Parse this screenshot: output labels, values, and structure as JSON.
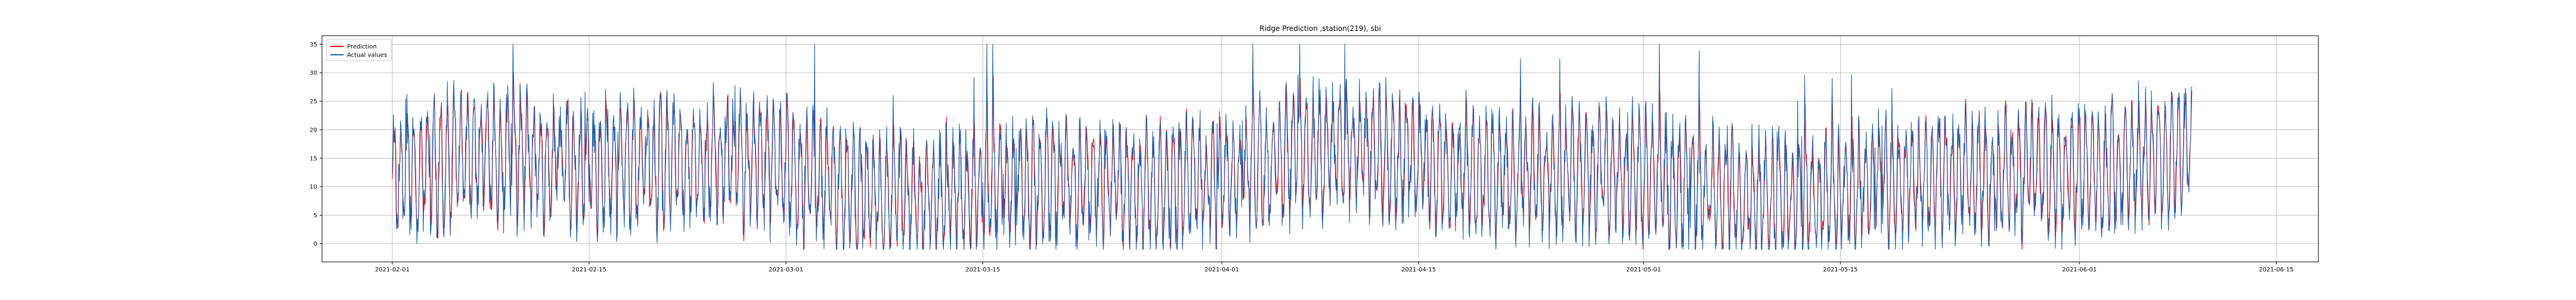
{
  "chart_data": {
    "type": "line",
    "title": "Ridge Prediction ,station(219), sbi",
    "xlabel": "",
    "ylabel": "",
    "x_range": [
      "2021-01-27",
      "2021-06-18"
    ],
    "x_ticks": [
      "2021-02-01",
      "2021-02-15",
      "2021-03-01",
      "2021-03-15",
      "2021-04-01",
      "2021-04-15",
      "2021-05-01",
      "2021-05-15",
      "2021-06-01",
      "2021-06-15"
    ],
    "ylim": [
      -3.2,
      36.5
    ],
    "y_ticks": [
      0,
      5,
      10,
      15,
      20,
      25,
      30,
      35
    ],
    "grid": true,
    "legend_position": "upper-left",
    "data_range": [
      "2021-02-01",
      "2021-06-09"
    ],
    "series": [
      {
        "name": "Prediction",
        "color": "#ff0000"
      },
      {
        "name": "Actual values",
        "color": "#1f5fa8"
      }
    ]
  }
}
